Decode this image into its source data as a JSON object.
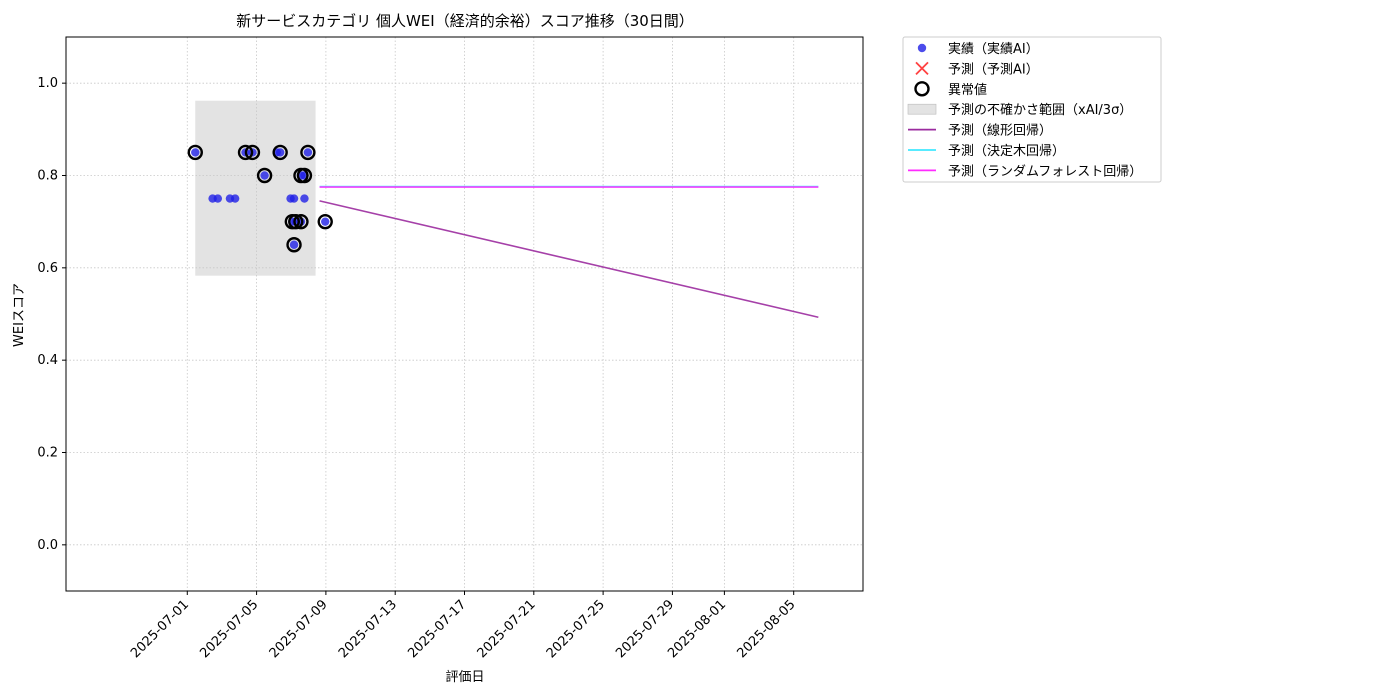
{
  "chart_data": {
    "type": "scatter",
    "title": "新サービスカテゴリ 個人WEI（経済的余裕）スコア推移（30日間）",
    "xlabel": "評価日",
    "ylabel": "WEIスコア",
    "ylim": [
      -0.1,
      1.1
    ],
    "xlim": [
      "2025-06-24",
      "2025-08-09"
    ],
    "grid": true,
    "legend_position": "outside-top-right",
    "x_ticks": [
      "2025-07-01",
      "2025-07-05",
      "2025-07-09",
      "2025-07-13",
      "2025-07-17",
      "2025-07-21",
      "2025-07-25",
      "2025-07-29",
      "2025-08-01",
      "2025-08-05"
    ],
    "y_ticks": [
      "0.0",
      "0.2",
      "0.4",
      "0.6",
      "0.8",
      "1.0"
    ],
    "y_tick_values": [
      0.0,
      0.2,
      0.4,
      0.6,
      0.8,
      1.0
    ],
    "uncertainty_band": {
      "name": "予測の不確かさ範囲（xAI/3σ）",
      "x_start": "2025-07-01",
      "x_end": "2025-07-08",
      "y_low": 0.583,
      "y_high": 0.962,
      "color": "#c8c8c8"
    },
    "series": [
      {
        "name": "実績（実績AI）",
        "kind": "scatter",
        "color": "#1f1fe6",
        "points": [
          {
            "x": "2025-07-01",
            "y": 0.85
          },
          {
            "x": "2025-07-02",
            "y": 0.75
          },
          {
            "x": "2025-07-02",
            "y": 0.75
          },
          {
            "x": "2025-07-03",
            "y": 0.75
          },
          {
            "x": "2025-07-03",
            "y": 0.75
          },
          {
            "x": "2025-07-04",
            "y": 0.85
          },
          {
            "x": "2025-07-04",
            "y": 0.85
          },
          {
            "x": "2025-07-05",
            "y": 0.85
          },
          {
            "x": "2025-07-05",
            "y": 0.8
          },
          {
            "x": "2025-07-05",
            "y": 0.85
          },
          {
            "x": "2025-07-06",
            "y": 0.75
          },
          {
            "x": "2025-07-06",
            "y": 0.7
          },
          {
            "x": "2025-07-06",
            "y": 0.65
          },
          {
            "x": "2025-07-06",
            "y": 0.75
          },
          {
            "x": "2025-07-06",
            "y": 0.7
          },
          {
            "x": "2025-07-07",
            "y": 0.8
          },
          {
            "x": "2025-07-07",
            "y": 0.7
          },
          {
            "x": "2025-07-07",
            "y": 0.8
          },
          {
            "x": "2025-07-07",
            "y": 0.75
          },
          {
            "x": "2025-07-07",
            "y": 0.85
          },
          {
            "x": "2025-07-08",
            "y": 0.7
          }
        ]
      },
      {
        "name": "予測（予測AI）",
        "kind": "x-marker",
        "color": "#ff2020",
        "points": []
      },
      {
        "name": "異常値",
        "kind": "ring",
        "color": "#000000",
        "points": [
          {
            "x": "2025-07-01",
            "y": 0.85
          },
          {
            "x": "2025-07-04",
            "y": 0.85
          },
          {
            "x": "2025-07-04",
            "y": 0.85
          },
          {
            "x": "2025-07-05",
            "y": 0.8
          },
          {
            "x": "2025-07-05",
            "y": 0.85
          },
          {
            "x": "2025-07-06",
            "y": 0.7
          },
          {
            "x": "2025-07-06",
            "y": 0.65
          },
          {
            "x": "2025-07-06",
            "y": 0.7
          },
          {
            "x": "2025-07-07",
            "y": 0.8
          },
          {
            "x": "2025-07-07",
            "y": 0.7
          },
          {
            "x": "2025-07-07",
            "y": 0.8
          },
          {
            "x": "2025-07-07",
            "y": 0.85
          },
          {
            "x": "2025-07-08",
            "y": 0.7
          }
        ]
      },
      {
        "name": "予測（線形回帰）",
        "kind": "line",
        "color": "#9b2b9f",
        "points": [
          {
            "x": "2025-07-08",
            "y": 0.745
          },
          {
            "x": "2025-08-07",
            "y": 0.493
          }
        ]
      },
      {
        "name": "予測（決定木回帰）",
        "kind": "line",
        "color": "#40e8ff",
        "points": [
          {
            "x": "2025-07-08",
            "y": 0.776
          },
          {
            "x": "2025-08-07",
            "y": 0.776
          }
        ]
      },
      {
        "name": "予測（ランダムフォレスト回帰）",
        "kind": "line",
        "color": "#ff2bff",
        "points": [
          {
            "x": "2025-07-08",
            "y": 0.775
          },
          {
            "x": "2025-08-07",
            "y": 0.775
          }
        ]
      }
    ]
  }
}
